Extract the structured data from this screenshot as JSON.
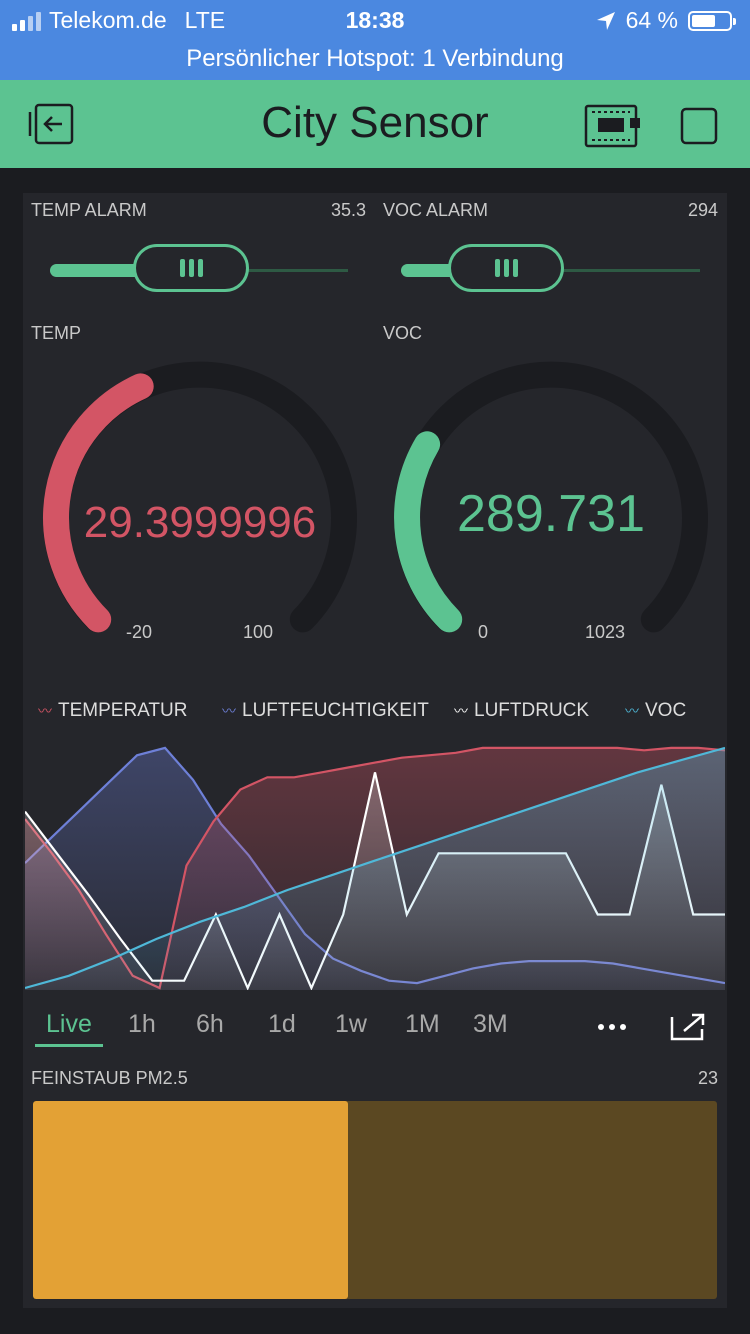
{
  "status_bar": {
    "carrier": "Telekom.de",
    "network": "LTE",
    "time": "18:38",
    "battery": "64 %",
    "battery_level": 0.64,
    "hotspot": "Persönlicher Hotspot: 1 Verbindung"
  },
  "header": {
    "title": "City Sensor",
    "accent": "#5cc391",
    "icons": [
      "exit-icon",
      "device-board-icon",
      "play-stop-icon"
    ]
  },
  "sliders": [
    {
      "label": "TEMP ALARM",
      "value": "35.3",
      "level": 0.36
    },
    {
      "label": "VOC ALARM",
      "value": "294",
      "level": 0.24
    }
  ],
  "gauges": [
    {
      "label": "TEMP",
      "value": "29.3999996",
      "min": "-20",
      "max": "100",
      "color": "#d35565",
      "level": 0.41
    },
    {
      "label": "VOC",
      "value": "289.731",
      "min": "0",
      "max": "1023",
      "color": "#5cc391",
      "level": 0.28
    }
  ],
  "chart_data": {
    "type": "area",
    "legend": [
      {
        "name": "TEMPERATUR",
        "color": "#d35565"
      },
      {
        "name": "LUFTFEUCHTIGKEIT",
        "color": "#6e80d8"
      },
      {
        "name": "LUFTDRUCK",
        "color": "#ffffff"
      },
      {
        "name": "VOC",
        "color": "#4fb8d8"
      }
    ],
    "series": [
      {
        "name": "TEMPERATUR",
        "color": "#d35565",
        "values": [
          0.69,
          0.55,
          0.4,
          0.22,
          0.05,
          0.0,
          0.5,
          0.68,
          0.81,
          0.86,
          0.86,
          0.88,
          0.9,
          0.92,
          0.94,
          0.95,
          0.96,
          0.98,
          0.98,
          0.98,
          0.98,
          0.98,
          0.98,
          0.97,
          0.98,
          0.98,
          0.97
        ]
      },
      {
        "name": "LUFTFEUCHTIGKEIT",
        "color": "#6e80d8",
        "values": [
          0.51,
          0.62,
          0.73,
          0.84,
          0.95,
          0.98,
          0.85,
          0.67,
          0.54,
          0.38,
          0.22,
          0.12,
          0.07,
          0.03,
          0.02,
          0.05,
          0.08,
          0.1,
          0.11,
          0.11,
          0.11,
          0.1,
          0.08,
          0.06,
          0.04,
          0.02
        ]
      },
      {
        "name": "LUFTDRUCK",
        "color": "#ffffff",
        "values": [
          0.72,
          0.55,
          0.38,
          0.2,
          0.03,
          0.03,
          0.3,
          0.0,
          0.3,
          0.0,
          0.3,
          0.88,
          0.3,
          0.55,
          0.55,
          0.55,
          0.55,
          0.55,
          0.3,
          0.3,
          0.83,
          0.3,
          0.3
        ]
      },
      {
        "name": "VOC",
        "color": "#4fb8d8",
        "values": [
          0.0,
          0.05,
          0.12,
          0.2,
          0.27,
          0.33,
          0.4,
          0.46,
          0.52,
          0.58,
          0.64,
          0.7,
          0.76,
          0.82,
          0.88,
          0.93,
          0.98
        ]
      }
    ]
  },
  "time_ranges": [
    "Live",
    "1h",
    "6h",
    "1d",
    "1w",
    "1M",
    "3M"
  ],
  "selected_range": "Live",
  "level_bar": {
    "label": "FEINSTAUB PM2.5",
    "value": "23",
    "level": 0.46,
    "color": "#e3a135"
  }
}
